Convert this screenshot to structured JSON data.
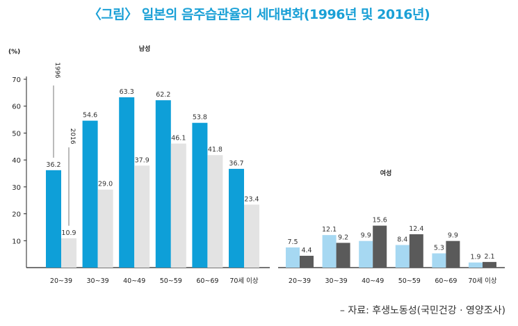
{
  "title": "〈그림〉 일본의 음주습관율의 세대변화(1996년 및 2016년)",
  "source": "– 자료: 후생노동성(국민건강 · 영양조사)",
  "colors": {
    "title": "#1aa0d6",
    "male_1996": "#0e9fd8",
    "male_2016": "#e3e3e3",
    "female_1996": "#a6d8f2",
    "female_2016": "#5a5a5a",
    "axis": "#222222",
    "text": "#333333"
  },
  "chart_data": {
    "type": "bar",
    "ylabel": "(%)",
    "ylim": [
      0,
      70
    ],
    "yticks": [
      10,
      20,
      30,
      40,
      50,
      60,
      70
    ],
    "categories": [
      "20~39",
      "30~39",
      "40~49",
      "50~59",
      "60~69",
      "70세 이상"
    ],
    "series_labels": [
      "1996",
      "2016"
    ],
    "groups": [
      {
        "name": "남성",
        "series": [
          {
            "name": "1996",
            "values": [
              36.2,
              54.6,
              63.3,
              62.2,
              53.8,
              36.7
            ]
          },
          {
            "name": "2016",
            "values": [
              10.9,
              29.0,
              37.9,
              46.1,
              41.8,
              23.4
            ]
          }
        ]
      },
      {
        "name": "여성",
        "series": [
          {
            "name": "1996",
            "values": [
              7.5,
              12.1,
              9.9,
              8.4,
              5.3,
              1.9
            ]
          },
          {
            "name": "2016",
            "values": [
              4.4,
              9.2,
              15.6,
              12.4,
              9.9,
              2.1
            ]
          }
        ]
      }
    ]
  }
}
